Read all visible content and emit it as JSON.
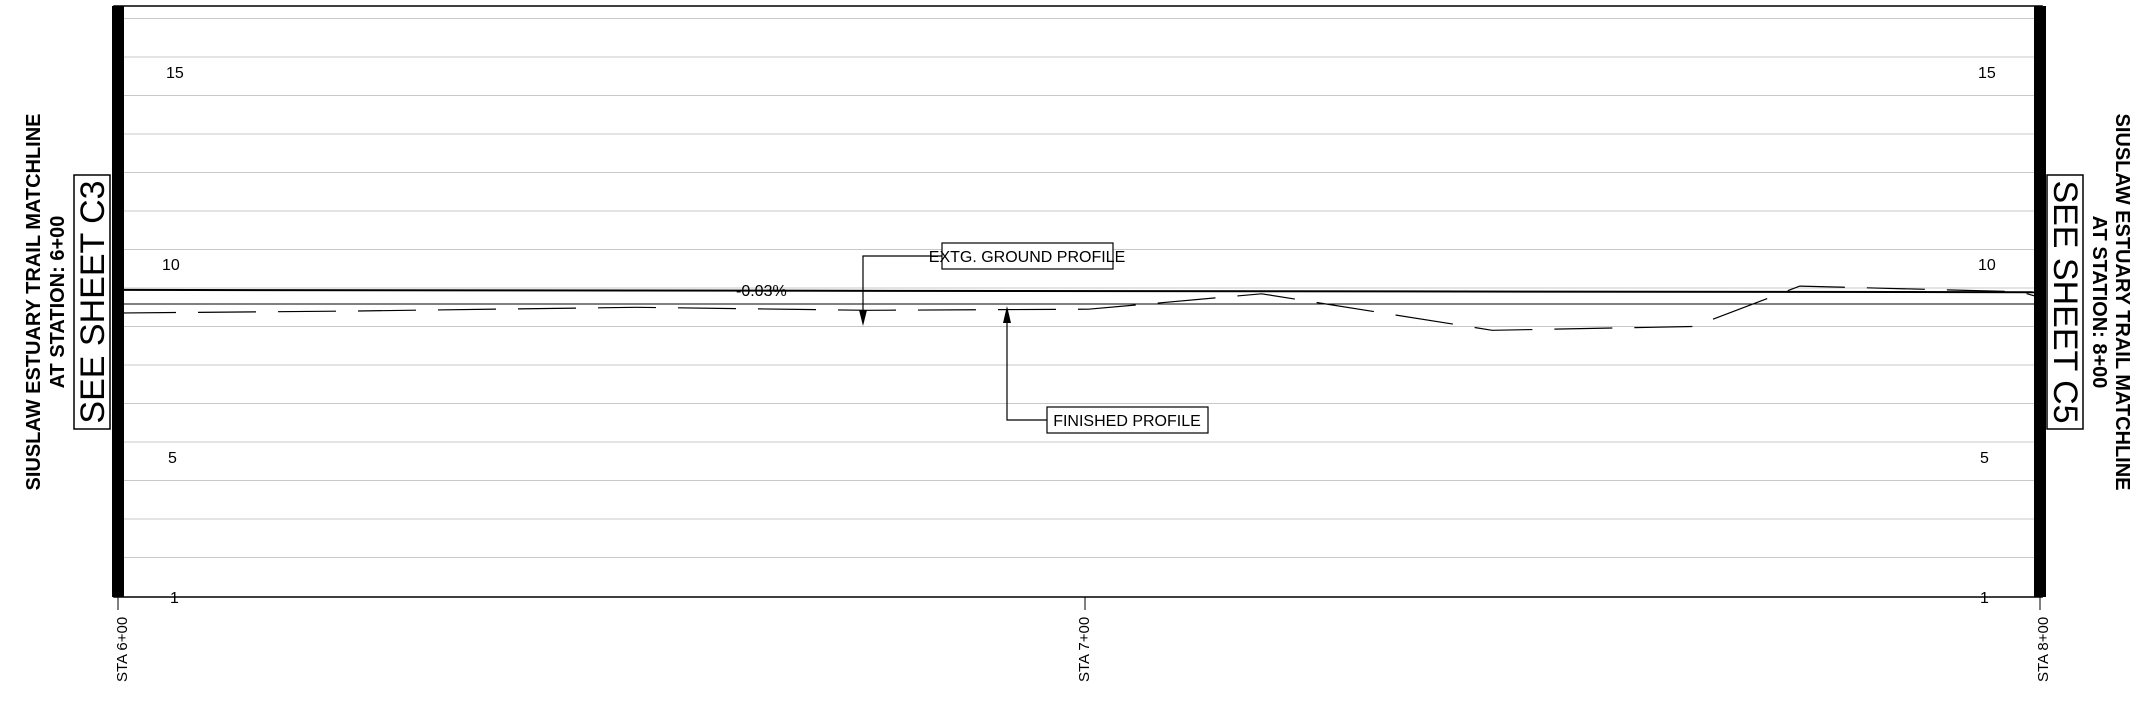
{
  "left_matchline": {
    "title": "SIUSLAW ESTUARY TRAIL MATCHLINE",
    "station": "AT STATION: 6+00",
    "see_sheet": "SEE SHEET C3"
  },
  "right_matchline": {
    "title": "SIUSLAW ESTUARY TRAIL MATCHLINE",
    "station": "AT STATION: 8+00",
    "see_sheet": "SEE SHEET C5"
  },
  "callouts": {
    "extg_ground": "EXTG. GROUND PROFILE",
    "finished": "FINISHED PROFILE",
    "grade": "-0.03%"
  },
  "y_axis": {
    "labels_left": [
      "15",
      "10",
      "5",
      "1"
    ],
    "labels_right": [
      "15",
      "10",
      "5",
      "1"
    ],
    "range": [
      1,
      16
    ],
    "grid_interval": 1
  },
  "stations": [
    "STA 6+00",
    "STA 7+00",
    "STA 8+00"
  ],
  "chart_data": {
    "type": "line",
    "title": "",
    "xlabel": "",
    "ylabel": "",
    "x_range": [
      600,
      800
    ],
    "ylim": [
      1,
      16
    ],
    "series": [
      {
        "name": "FINISHED PROFILE",
        "style": "solid",
        "x": [
          600,
          800
        ],
        "y": [
          8.95,
          8.89
        ]
      },
      {
        "name": "EXTG. GROUND PROFILE",
        "style": "dashed",
        "x": [
          600,
          624,
          654,
          678,
          701,
          719,
          743,
          764,
          775,
          798,
          800
        ],
        "y": [
          8.35,
          8.4,
          8.5,
          8.42,
          8.45,
          8.85,
          7.9,
          8.0,
          9.05,
          8.9,
          8.75
        ]
      }
    ]
  }
}
